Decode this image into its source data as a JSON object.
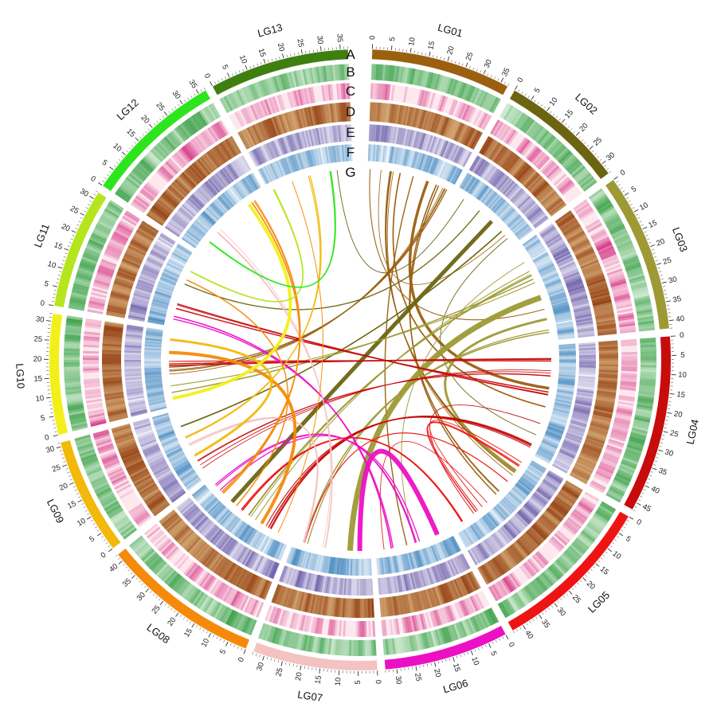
{
  "diagram": {
    "type": "circos",
    "chromosomes": [
      {
        "name": "LG01",
        "length": 37,
        "color": "#9a6010"
      },
      {
        "name": "LG02",
        "length": 33,
        "color": "#6b6512"
      },
      {
        "name": "LG03",
        "length": 42,
        "color": "#9d9a35"
      },
      {
        "name": "LG04",
        "length": 47,
        "color": "#c80b0b"
      },
      {
        "name": "LG05",
        "length": 43,
        "color": "#ee1414"
      },
      {
        "name": "LG06",
        "length": 33,
        "color": "#ec10c4"
      },
      {
        "name": "LG07",
        "length": 33,
        "color": "#f5c2c2"
      },
      {
        "name": "LG08",
        "length": 42,
        "color": "#f58a0a"
      },
      {
        "name": "LG09",
        "length": 31,
        "color": "#f2b80a"
      },
      {
        "name": "LG10",
        "length": 32,
        "color": "#f2f01a"
      },
      {
        "name": "LG11",
        "length": 32,
        "color": "#b5e51c"
      },
      {
        "name": "LG12",
        "length": 37,
        "color": "#2de51c"
      },
      {
        "name": "LG13",
        "length": 37,
        "color": "#3f7f10"
      }
    ],
    "tick_step": 5,
    "tracks": [
      {
        "letter": "A",
        "kind": "chromosome ideogram"
      },
      {
        "letter": "B",
        "kind": "density",
        "palette": [
          "#e6f5e6",
          "#2e9a3c"
        ]
      },
      {
        "letter": "C",
        "kind": "density",
        "palette": [
          "#fde8ee",
          "#cc0a6a"
        ]
      },
      {
        "letter": "D",
        "kind": "density",
        "palette": [
          "#fbe9b0",
          "#8b3005"
        ]
      },
      {
        "letter": "E",
        "kind": "density",
        "palette": [
          "#f0eef8",
          "#5a4a9e"
        ]
      },
      {
        "letter": "F",
        "kind": "density",
        "palette": [
          "#e8f1fa",
          "#2b78b6"
        ]
      },
      {
        "letter": "G",
        "kind": "synteny links"
      }
    ],
    "links": [
      {
        "a": [
          0,
          2
        ],
        "b": [
          2,
          30
        ],
        "w": 0.6
      },
      {
        "a": [
          0,
          6
        ],
        "b": [
          1,
          28
        ],
        "w": 0.6
      },
      {
        "a": [
          0,
          10
        ],
        "b": [
          4,
          8
        ],
        "w": 0.8
      },
      {
        "a": [
          0,
          15
        ],
        "b": [
          3,
          28
        ],
        "w": 1.0
      },
      {
        "a": [
          0,
          20
        ],
        "b": [
          5,
          20
        ],
        "w": 0.8
      },
      {
        "a": [
          0,
          26
        ],
        "b": [
          3,
          18
        ],
        "w": 3.5
      },
      {
        "a": [
          0,
          31
        ],
        "b": [
          4,
          20
        ],
        "w": 0.6
      },
      {
        "a": [
          0,
          34
        ],
        "b": [
          9,
          15
        ],
        "w": 0.6
      },
      {
        "a": [
          1,
          4
        ],
        "b": [
          12,
          30
        ],
        "w": 0.8
      },
      {
        "a": [
          1,
          12
        ],
        "b": [
          10,
          18
        ],
        "w": 0.6
      },
      {
        "a": [
          1,
          20
        ],
        "b": [
          7,
          30
        ],
        "w": 5.0
      },
      {
        "a": [
          1,
          30
        ],
        "b": [
          3,
          40
        ],
        "w": 0.8
      },
      {
        "a": [
          1,
          26
        ],
        "b": [
          8,
          25
        ],
        "w": 0.6
      },
      {
        "a": [
          2,
          8
        ],
        "b": [
          5,
          18
        ],
        "w": 0.6
      },
      {
        "a": [
          2,
          16
        ],
        "b": [
          9,
          8
        ],
        "w": 0.6
      },
      {
        "a": [
          2,
          24
        ],
        "b": [
          6,
          10
        ],
        "w": 7.0
      },
      {
        "a": [
          2,
          32
        ],
        "b": [
          4,
          6
        ],
        "w": 3.0
      },
      {
        "a": [
          2,
          38
        ],
        "b": [
          6,
          28
        ],
        "w": 0.6
      },
      {
        "a": [
          2,
          12
        ],
        "b": [
          7,
          18
        ],
        "w": 0.8
      },
      {
        "a": [
          3,
          6
        ],
        "b": [
          9,
          18
        ],
        "w": 1.2
      },
      {
        "a": [
          3,
          12
        ],
        "b": [
          8,
          6
        ],
        "w": 0.6
      },
      {
        "a": [
          3,
          20
        ],
        "b": [
          10,
          8
        ],
        "w": 0.8
      },
      {
        "a": [
          3,
          35
        ],
        "b": [
          4,
          35
        ],
        "w": 0.6
      },
      {
        "a": [
          3,
          44
        ],
        "b": [
          7,
          10
        ],
        "w": 0.6
      },
      {
        "a": [
          4,
          4
        ],
        "b": [
          4,
          30
        ],
        "w": 0.6
      },
      {
        "a": [
          4,
          14
        ],
        "b": [
          6,
          30
        ],
        "w": 0.6
      },
      {
        "a": [
          4,
          26
        ],
        "b": [
          5,
          30
        ],
        "w": 0.6
      },
      {
        "a": [
          4,
          38
        ],
        "b": [
          7,
          22
        ],
        "w": 0.6
      },
      {
        "a": [
          5,
          6
        ],
        "b": [
          6,
          5
        ],
        "w": 6.0
      },
      {
        "a": [
          5,
          15
        ],
        "b": [
          7,
          38
        ],
        "w": 0.6
      },
      {
        "a": [
          5,
          26
        ],
        "b": [
          10,
          4
        ],
        "w": 0.6
      },
      {
        "a": [
          6,
          20
        ],
        "b": [
          11,
          12
        ],
        "w": 2.0
      },
      {
        "a": [
          6,
          28
        ],
        "b": [
          8,
          14
        ],
        "w": 0.6
      },
      {
        "a": [
          7,
          5
        ],
        "b": [
          12,
          10
        ],
        "w": 0.6
      },
      {
        "a": [
          7,
          14
        ],
        "b": [
          9,
          24
        ],
        "w": 4.0
      },
      {
        "a": [
          7,
          26
        ],
        "b": [
          10,
          20
        ],
        "w": 2.0
      },
      {
        "a": [
          7,
          34
        ],
        "b": [
          11,
          30
        ],
        "w": 0.6
      },
      {
        "a": [
          8,
          10
        ],
        "b": [
          9,
          28
        ],
        "w": 3.0
      },
      {
        "a": [
          8,
          20
        ],
        "b": [
          12,
          20
        ],
        "w": 0.8
      },
      {
        "a": [
          9,
          4
        ],
        "b": [
          11,
          30
        ],
        "w": 4.0
      },
      {
        "a": [
          10,
          26
        ],
        "b": [
          12,
          4
        ],
        "w": 1.0
      },
      {
        "a": [
          11,
          6
        ],
        "b": [
          12,
          28
        ],
        "w": 1.5
      }
    ]
  }
}
